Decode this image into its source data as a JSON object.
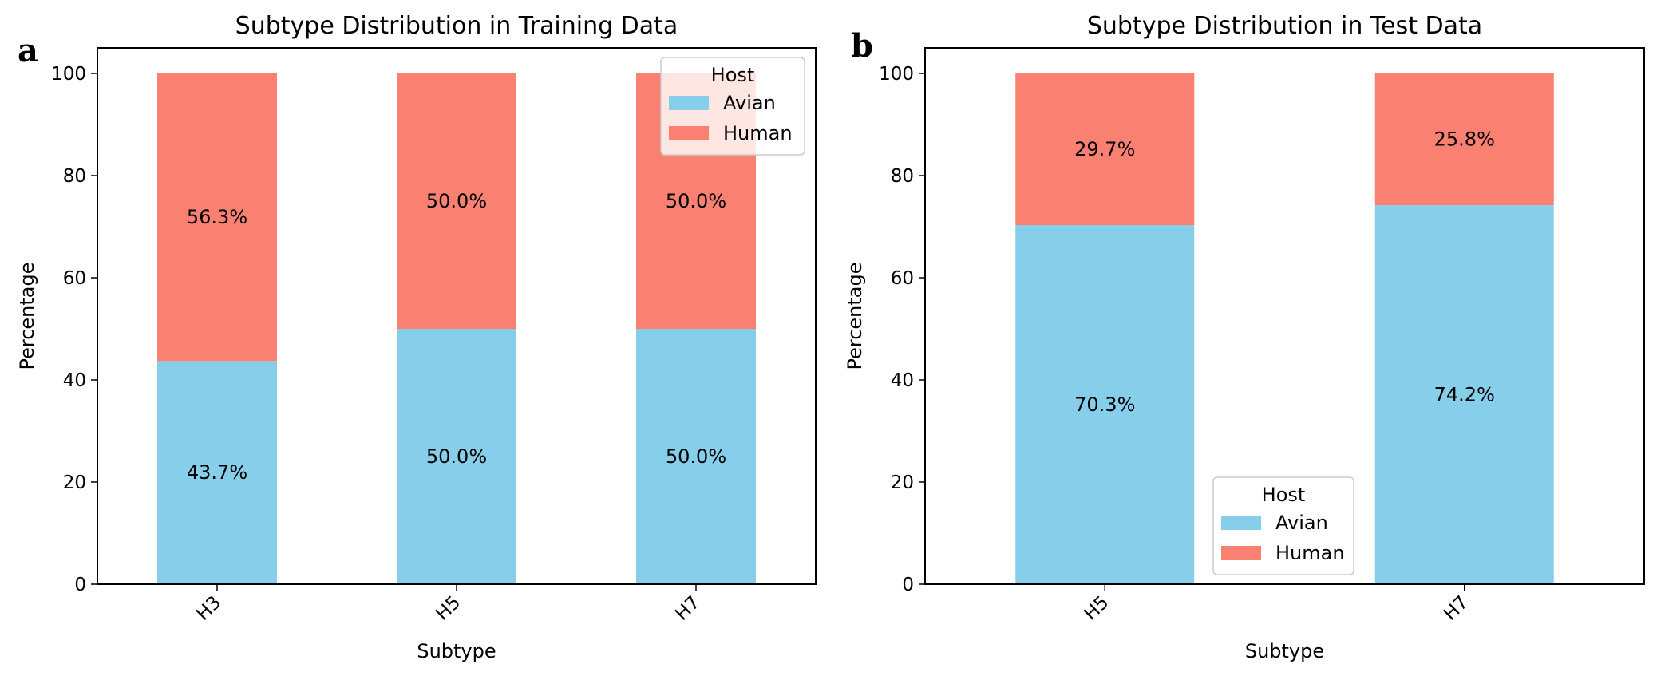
{
  "panel_labels": [
    "a",
    "b"
  ],
  "colors": {
    "avian": "#87CEEB",
    "human": "#FA8072"
  },
  "chart_data": [
    {
      "type": "bar",
      "stacked": true,
      "title": "Subtype Distribution in Training Data",
      "xlabel": "Subtype",
      "ylabel": "Percentage",
      "ylim": [
        0,
        105
      ],
      "yticks": [
        0,
        20,
        40,
        60,
        80,
        100
      ],
      "categories": [
        "H3",
        "H5",
        "H7"
      ],
      "series": [
        {
          "name": "Avian",
          "values": [
            43.7,
            50.0,
            50.0
          ],
          "labels": [
            "43.7%",
            "50.0%",
            "50.0%"
          ]
        },
        {
          "name": "Human",
          "values": [
            56.3,
            50.0,
            50.0
          ],
          "labels": [
            "56.3%",
            "50.0%",
            "50.0%"
          ]
        }
      ],
      "legend": {
        "title": "Host",
        "position": "upper right"
      },
      "grid": false
    },
    {
      "type": "bar",
      "stacked": true,
      "title": "Subtype Distribution in Test Data",
      "xlabel": "Subtype",
      "ylabel": "Percentage",
      "ylim": [
        0,
        105
      ],
      "yticks": [
        0,
        20,
        40,
        60,
        80,
        100
      ],
      "categories": [
        "H5",
        "H7"
      ],
      "series": [
        {
          "name": "Avian",
          "values": [
            70.3,
            74.2
          ],
          "labels": [
            "70.3%",
            "74.2%"
          ]
        },
        {
          "name": "Human",
          "values": [
            29.7,
            25.8
          ],
          "labels": [
            "29.7%",
            "25.8%"
          ]
        }
      ],
      "legend": {
        "title": "Host",
        "position": "lower center"
      },
      "grid": false
    }
  ]
}
